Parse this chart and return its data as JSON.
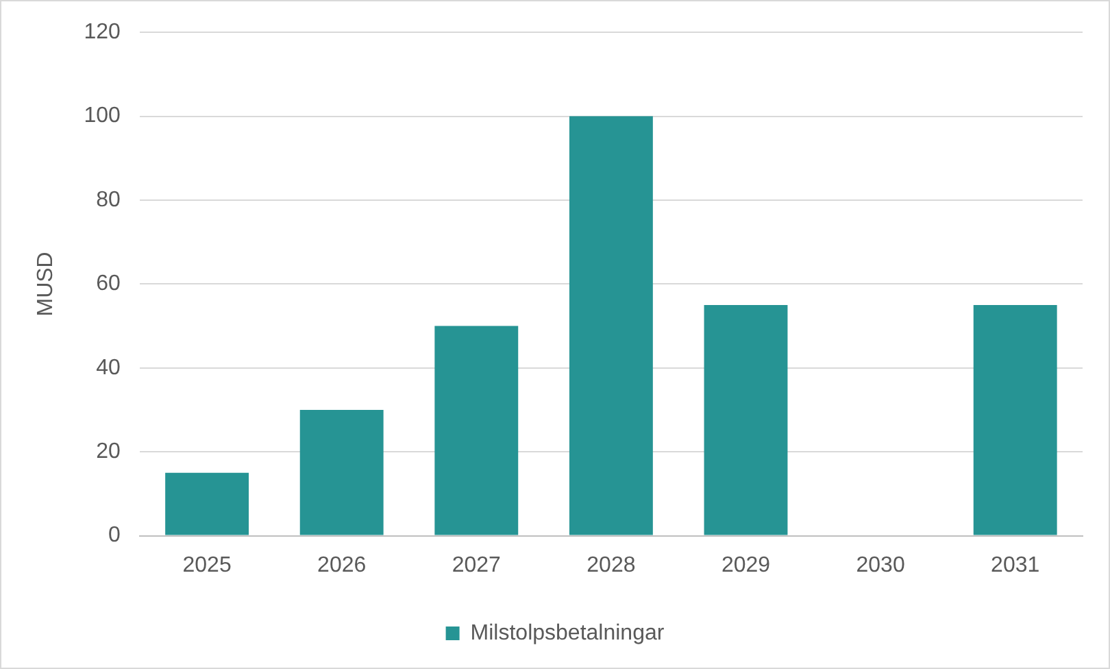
{
  "chart_data": {
    "type": "bar",
    "ylabel": "MUSD",
    "categories": [
      "2025",
      "2026",
      "2027",
      "2028",
      "2029",
      "2030",
      "2031"
    ],
    "series": [
      {
        "name": "Milstolpsbetalningar",
        "color": "#269494",
        "values": [
          15,
          30,
          50,
          100,
          55,
          null,
          55
        ]
      }
    ],
    "ylim": [
      0,
      120
    ],
    "yticks": [
      0,
      20,
      40,
      60,
      80,
      100,
      120
    ],
    "grid": "y",
    "legend": "bottom"
  }
}
